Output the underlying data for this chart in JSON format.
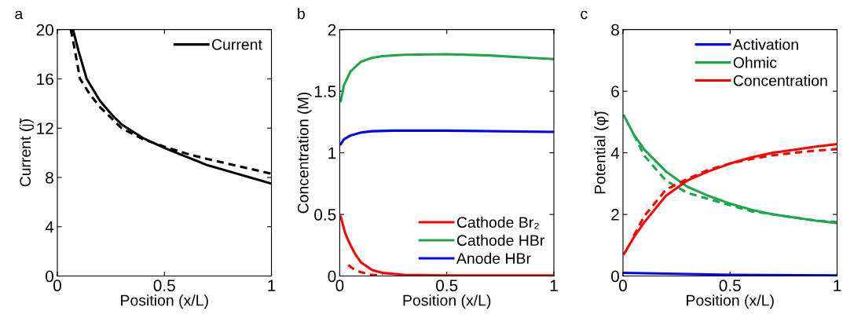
{
  "chart_data": [
    {
      "type": "line",
      "title": "a",
      "xlabel": "Position (x/L)",
      "ylabel": "Current (j̃)",
      "xlim": [
        0,
        1
      ],
      "ylim": [
        0,
        20
      ],
      "xticks": [
        0,
        0.5,
        1
      ],
      "yticks": [
        0,
        4,
        8,
        12,
        16,
        20
      ],
      "legend": "top right",
      "grid": false,
      "series": [
        {
          "name": "Current",
          "color": "#000000",
          "line_style": "solid",
          "x": [
            0.073,
            0.1,
            0.137,
            0.2,
            0.259,
            0.3,
            0.4,
            0.5,
            0.6,
            0.7,
            0.8,
            0.9,
            1
          ],
          "values": [
            20,
            18.2,
            16.0,
            14.2,
            13.0,
            12.3,
            11.2,
            10.4,
            9.7,
            9.0,
            8.5,
            8.0,
            7.5
          ]
        },
        {
          "color": "#000000",
          "line_style": "dashed",
          "x": [
            0.063,
            0.08,
            0.106,
            0.15,
            0.2,
            0.3,
            0.4,
            0.5,
            0.6,
            0.7,
            0.8,
            0.9,
            1
          ],
          "values": [
            20,
            18.5,
            16,
            14.8,
            13.7,
            12.0,
            11.1,
            10.5,
            9.95,
            9.5,
            9.1,
            8.7,
            8.3
          ]
        }
      ]
    },
    {
      "type": "line",
      "title": "b",
      "xlabel": "Position (x/L)",
      "ylabel": "Concentration (M)",
      "xlim": [
        0,
        1
      ],
      "ylim": [
        0,
        2
      ],
      "xticks": [
        0,
        0.5,
        1
      ],
      "yticks": [
        0,
        0.5,
        1,
        1.5,
        2
      ],
      "legend": "bottom right",
      "grid": false,
      "series": [
        {
          "name": "Cathode Br₂",
          "color": "#ff0000",
          "line_style": "solid",
          "x": [
            0.005,
            0.025,
            0.05,
            0.075,
            0.1,
            0.15,
            0.2,
            0.3,
            0.5,
            1
          ],
          "values": [
            0.48,
            0.35,
            0.25,
            0.17,
            0.11,
            0.05,
            0.025,
            0.01,
            0.005,
            0.005
          ]
        },
        {
          "name": "Cathode HBr",
          "color": "#1fa64a",
          "line_style": "solid",
          "x": [
            0.005,
            0.02,
            0.05,
            0.1,
            0.15,
            0.2,
            0.3,
            0.5,
            0.7,
            0.9,
            1
          ],
          "values": [
            1.42,
            1.55,
            1.66,
            1.74,
            1.77,
            1.785,
            1.795,
            1.8,
            1.79,
            1.77,
            1.76
          ]
        },
        {
          "name": "Anode HBr",
          "color": "#0000ff",
          "line_style": "solid",
          "x": [
            0.005,
            0.02,
            0.05,
            0.1,
            0.15,
            0.25,
            0.5,
            1
          ],
          "values": [
            1.07,
            1.11,
            1.14,
            1.165,
            1.175,
            1.18,
            1.18,
            1.17
          ]
        },
        {
          "color": "#ff0000",
          "line_style": "dashed",
          "x": [
            0.04,
            0.07,
            0.1,
            0.15,
            0.2
          ],
          "values": [
            0.09,
            0.05,
            0.03,
            0.01,
            0.005
          ]
        }
      ]
    },
    {
      "type": "line",
      "title": "c",
      "xlabel": "Position (x/L)",
      "ylabel": "Potential (φ̃)",
      "xlim": [
        0,
        1
      ],
      "ylim": [
        0,
        8
      ],
      "xticks": [
        0,
        0.5,
        1
      ],
      "yticks": [
        0,
        2,
        4,
        6,
        8
      ],
      "legend": "top right",
      "grid": false,
      "series": [
        {
          "name": "Activation",
          "color": "#0000ff",
          "line_style": "solid",
          "x": [
            0.005,
            0.5,
            1
          ],
          "values": [
            0.1,
            0.04,
            0.02
          ]
        },
        {
          "name": "Ohmic",
          "color": "#1fa64a",
          "line_style": "solid",
          "x": [
            0.005,
            0.05,
            0.1,
            0.2,
            0.3,
            0.4,
            0.5,
            0.6,
            0.7,
            0.8,
            0.9,
            1
          ],
          "values": [
            5.2,
            4.6,
            4.1,
            3.4,
            2.9,
            2.6,
            2.35,
            2.15,
            2.0,
            1.9,
            1.8,
            1.72
          ]
        },
        {
          "name": "Concentration",
          "color": "#ff0000",
          "line_style": "solid",
          "x": [
            0.005,
            0.05,
            0.1,
            0.2,
            0.3,
            0.4,
            0.5,
            0.6,
            0.7,
            0.8,
            0.9,
            1
          ],
          "values": [
            0.72,
            1.25,
            1.75,
            2.6,
            3.1,
            3.4,
            3.65,
            3.85,
            4.0,
            4.1,
            4.2,
            4.28
          ]
        },
        {
          "color": "#1fa64a",
          "line_style": "dashed",
          "x": [
            0.05,
            0.1,
            0.2,
            0.3,
            0.4,
            0.5,
            0.6,
            0.7,
            0.8,
            0.9,
            1
          ],
          "values": [
            4.6,
            3.9,
            3.1,
            2.7,
            2.5,
            2.3,
            2.1,
            2.0,
            1.9,
            1.8,
            1.75
          ]
        },
        {
          "color": "#ff0000",
          "line_style": "dashed",
          "x": [
            0.05,
            0.1,
            0.2,
            0.3,
            0.4,
            0.5,
            0.6,
            0.7,
            0.8,
            0.9,
            1
          ],
          "values": [
            1.3,
            1.95,
            2.8,
            3.15,
            3.45,
            3.65,
            3.8,
            3.92,
            4.0,
            4.07,
            4.12
          ]
        }
      ]
    }
  ]
}
